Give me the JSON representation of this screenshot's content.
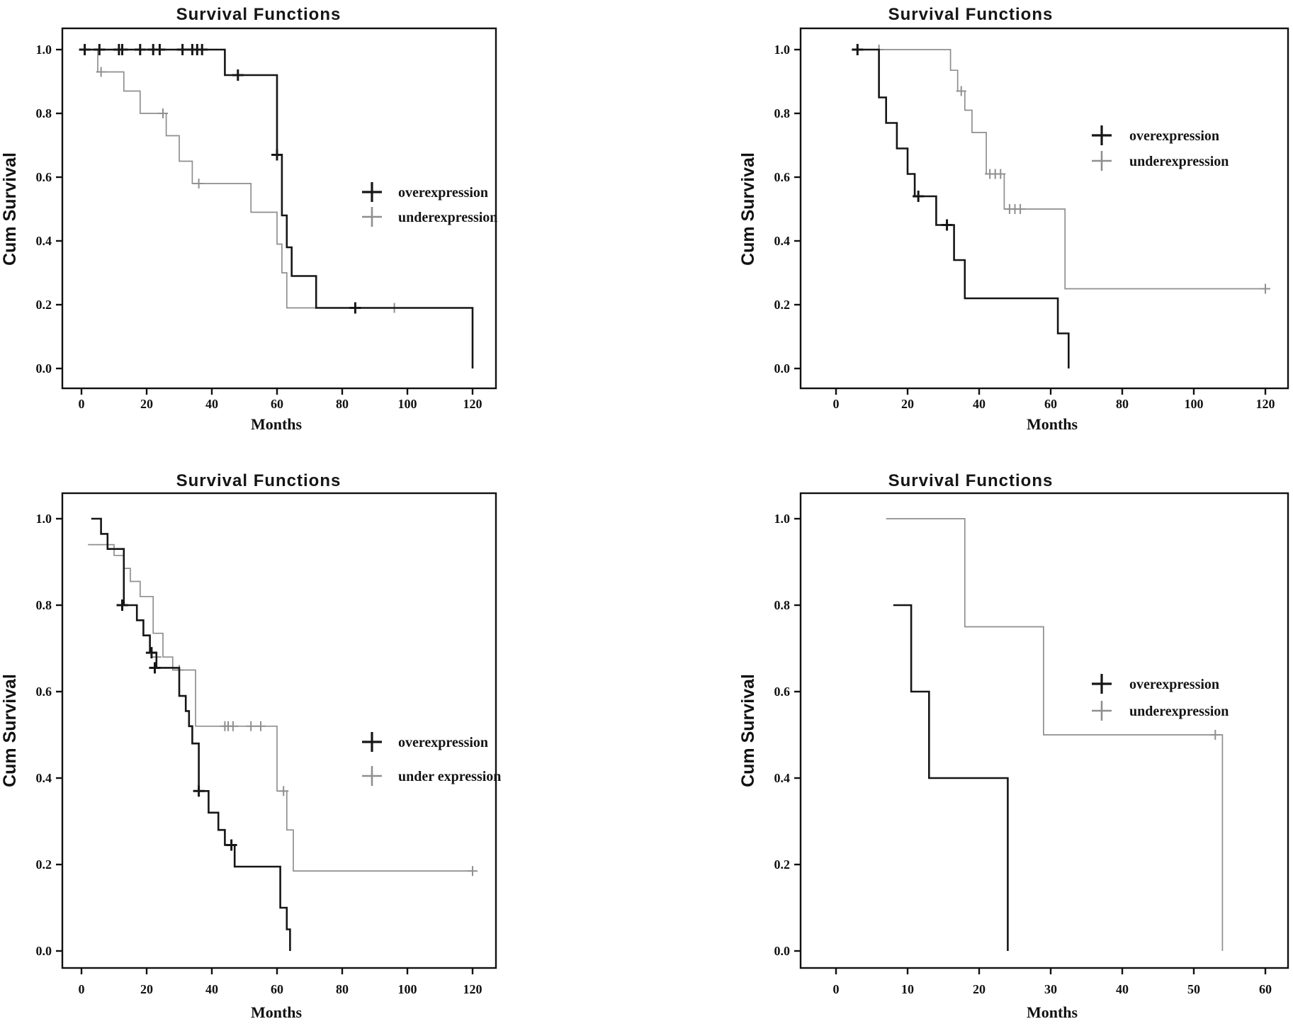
{
  "figure": {
    "background": "#ffffff",
    "panel_title": "Survival Functions",
    "y_axis_label": "Cum Survival",
    "x_axis_label": "Months",
    "colors": {
      "overexpression": "#161616",
      "underexpression": "#8f8f8f",
      "axis": "#111111"
    }
  },
  "chart_data": [
    {
      "id": "top-left",
      "type": "step",
      "title": "Survival Functions",
      "xlabel": "Months",
      "ylabel": "Cum Survival",
      "xlim": [
        0,
        120
      ],
      "ylim": [
        0.0,
        1.0
      ],
      "x_ticks": [
        "0",
        "20",
        "40",
        "60",
        "80",
        "100",
        "120"
      ],
      "y_ticks": [
        "0.0",
        "0.2",
        "0.4",
        "0.6",
        "0.8",
        "1.0"
      ],
      "grid": false,
      "legend_position": "inside-center-right",
      "series": [
        {
          "name": "overexpression",
          "color": "#161616",
          "line_width": 2.6,
          "steps": [
            [
              2,
              1.0
            ],
            [
              44,
              0.92
            ],
            [
              60,
              0.67
            ],
            [
              61.5,
              0.48
            ],
            [
              63,
              0.38
            ],
            [
              64.5,
              0.29
            ],
            [
              72,
              0.19
            ],
            [
              120,
              0.0
            ]
          ],
          "censors": [
            [
              1,
              1.0
            ],
            [
              5.5,
              1.0
            ],
            [
              11.5,
              1.0
            ],
            [
              12.5,
              1.0
            ],
            [
              18,
              1.0
            ],
            [
              22,
              1.0
            ],
            [
              24,
              1.0
            ],
            [
              31,
              1.0
            ],
            [
              34,
              1.0
            ],
            [
              35.5,
              1.0
            ],
            [
              37,
              1.0
            ],
            [
              48,
              0.92
            ],
            [
              60,
              0.67
            ],
            [
              84,
              0.19
            ]
          ]
        },
        {
          "name": "underexpression",
          "color": "#8f8f8f",
          "line_width": 1.7,
          "steps": [
            [
              3,
              1.0
            ],
            [
              5,
              0.93
            ],
            [
              13,
              0.87
            ],
            [
              18,
              0.8
            ],
            [
              26,
              0.73
            ],
            [
              30,
              0.65
            ],
            [
              34,
              0.58
            ],
            [
              52,
              0.49
            ],
            [
              60,
              0.39
            ],
            [
              61.5,
              0.3
            ],
            [
              63,
              0.19
            ],
            [
              120,
              0.19
            ]
          ],
          "censors": [
            [
              6,
              0.93
            ],
            [
              25,
              0.8
            ],
            [
              36,
              0.58
            ],
            [
              96,
              0.19
            ]
          ]
        }
      ]
    },
    {
      "id": "top-right",
      "type": "step",
      "title": "Survival Functions",
      "xlabel": "Months",
      "ylabel": "Cum Survival",
      "xlim": [
        0,
        120
      ],
      "ylim": [
        0.0,
        1.0
      ],
      "x_ticks": [
        "0",
        "20",
        "40",
        "60",
        "80",
        "100",
        "120"
      ],
      "y_ticks": [
        "0.0",
        "0.2",
        "0.4",
        "0.6",
        "0.8",
        "1.0"
      ],
      "grid": false,
      "legend_position": "inside-top-right",
      "series": [
        {
          "name": "overexpression",
          "color": "#161616",
          "line_width": 2.6,
          "steps": [
            [
              5,
              1.0
            ],
            [
              12,
              0.85
            ],
            [
              14,
              0.77
            ],
            [
              17,
              0.69
            ],
            [
              20,
              0.61
            ],
            [
              22,
              0.54
            ],
            [
              28,
              0.45
            ],
            [
              33,
              0.34
            ],
            [
              36,
              0.22
            ],
            [
              62,
              0.11
            ],
            [
              65,
              0.0
            ]
          ],
          "censors": [
            [
              6,
              1.0
            ],
            [
              23,
              0.54
            ],
            [
              31,
              0.45
            ]
          ]
        },
        {
          "name": "underexpression",
          "color": "#8f8f8f",
          "line_width": 1.7,
          "steps": [
            [
              11,
              1.0
            ],
            [
              32,
              0.935
            ],
            [
              34,
              0.87
            ],
            [
              36,
              0.81
            ],
            [
              38,
              0.74
            ],
            [
              42,
              0.61
            ],
            [
              47,
              0.5
            ],
            [
              64,
              0.25
            ],
            [
              120,
              0.25
            ]
          ],
          "censors": [
            [
              12,
              1.0
            ],
            [
              35,
              0.87
            ],
            [
              43,
              0.61
            ],
            [
              44.5,
              0.61
            ],
            [
              46,
              0.61
            ],
            [
              48.5,
              0.5
            ],
            [
              50,
              0.5
            ],
            [
              51.5,
              0.5
            ],
            [
              120,
              0.25
            ]
          ]
        }
      ]
    },
    {
      "id": "bottom-left",
      "type": "step",
      "title": "Survival Functions",
      "xlabel": "Months",
      "ylabel": "Cum Survival",
      "xlim": [
        0,
        120
      ],
      "ylim": [
        0.0,
        1.0
      ],
      "x_ticks": [
        "0",
        "20",
        "40",
        "60",
        "80",
        "100",
        "120"
      ],
      "y_ticks": [
        "0.0",
        "0.2",
        "0.4",
        "0.6",
        "0.8",
        "1.0"
      ],
      "grid": false,
      "legend_position": "inside-center-right",
      "series": [
        {
          "name": "overexpression",
          "color": "#161616",
          "line_width": 2.6,
          "steps": [
            [
              3,
              1.0
            ],
            [
              6,
              0.965
            ],
            [
              8,
              0.93
            ],
            [
              13,
              0.8
            ],
            [
              17,
              0.765
            ],
            [
              19,
              0.73
            ],
            [
              21,
              0.69
            ],
            [
              23,
              0.655
            ],
            [
              30,
              0.59
            ],
            [
              32,
              0.555
            ],
            [
              33,
              0.52
            ],
            [
              34,
              0.48
            ],
            [
              36,
              0.37
            ],
            [
              39,
              0.32
            ],
            [
              42,
              0.28
            ],
            [
              44,
              0.245
            ],
            [
              47,
              0.195
            ],
            [
              61,
              0.1
            ],
            [
              63,
              0.05
            ],
            [
              64,
              0.0
            ]
          ],
          "censors": [
            [
              12.5,
              0.8
            ],
            [
              21.5,
              0.69
            ],
            [
              22.5,
              0.655
            ],
            [
              36,
              0.37
            ],
            [
              46,
              0.245
            ]
          ]
        },
        {
          "name": "under expression",
          "color": "#8f8f8f",
          "line_width": 1.7,
          "steps": [
            [
              2,
              0.94
            ],
            [
              10,
              0.915
            ],
            [
              13,
              0.885
            ],
            [
              15,
              0.855
            ],
            [
              18,
              0.82
            ],
            [
              22,
              0.735
            ],
            [
              25,
              0.68
            ],
            [
              28,
              0.65
            ],
            [
              35,
              0.52
            ],
            [
              60,
              0.37
            ],
            [
              63,
              0.28
            ],
            [
              65,
              0.185
            ],
            [
              120,
              0.185
            ]
          ],
          "censors": [
            [
              23,
              0.68
            ],
            [
              30,
              0.65
            ],
            [
              44,
              0.52
            ],
            [
              45,
              0.52
            ],
            [
              46.5,
              0.52
            ],
            [
              52,
              0.52
            ],
            [
              55,
              0.52
            ],
            [
              62,
              0.37
            ],
            [
              120,
              0.185
            ]
          ]
        }
      ]
    },
    {
      "id": "bottom-right",
      "type": "step",
      "title": "Survival Functions",
      "xlabel": "Months",
      "ylabel": "Cum Survival",
      "xlim": [
        0,
        60
      ],
      "ylim": [
        0.0,
        1.0
      ],
      "x_ticks": [
        "0",
        "10",
        "20",
        "30",
        "40",
        "50",
        "60"
      ],
      "y_ticks": [
        "0.0",
        "0.2",
        "0.4",
        "0.6",
        "0.8",
        "1.0"
      ],
      "grid": false,
      "legend_position": "inside-top-right",
      "series": [
        {
          "name": "overexpression",
          "color": "#161616",
          "line_width": 2.6,
          "steps": [
            [
              8,
              0.8
            ],
            [
              10.5,
              0.6
            ],
            [
              13,
              0.4
            ],
            [
              24,
              0.0
            ]
          ],
          "censors": []
        },
        {
          "name": "underexpression",
          "color": "#8f8f8f",
          "line_width": 1.7,
          "steps": [
            [
              7,
              1.0
            ],
            [
              18,
              0.75
            ],
            [
              29,
              0.5
            ],
            [
              54,
              0.0
            ]
          ],
          "censors": [
            [
              53,
              0.5
            ]
          ]
        }
      ]
    }
  ]
}
